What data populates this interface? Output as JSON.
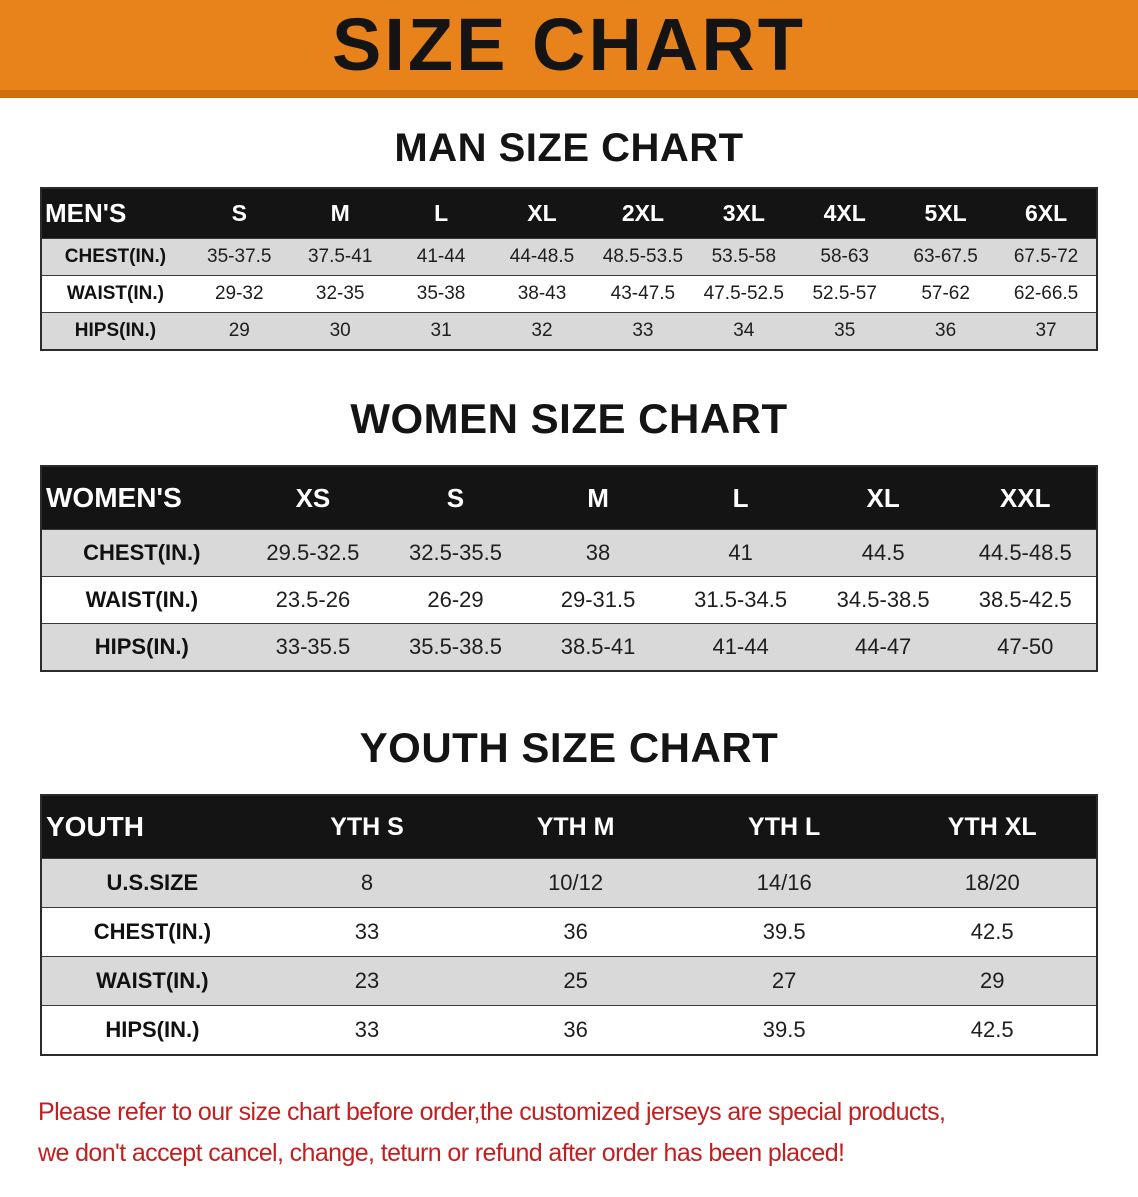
{
  "banner": {
    "title": "SIZE CHART"
  },
  "colors": {
    "banner_bg": "#e8821b",
    "banner_accent": "#d06e10",
    "table_header_bg": "#141414",
    "row_stripe": "#d9d9d9",
    "disclaimer_text": "#c22020"
  },
  "sections": [
    {
      "id": "men",
      "heading": "MAN SIZE CHART",
      "table": {
        "header": [
          "MEN'S",
          "S",
          "M",
          "L",
          "XL",
          "2XL",
          "3XL",
          "4XL",
          "5XL",
          "6XL"
        ],
        "rows": [
          [
            "CHEST(IN.)",
            "35-37.5",
            "37.5-41",
            "41-44",
            "44-48.5",
            "48.5-53.5",
            "53.5-58",
            "58-63",
            "63-67.5",
            "67.5-72"
          ],
          [
            "WAIST(IN.)",
            "29-32",
            "32-35",
            "35-38",
            "38-43",
            "43-47.5",
            "47.5-52.5",
            "52.5-57",
            "57-62",
            "62-66.5"
          ],
          [
            "HIPS(IN.)",
            "29",
            "30",
            "31",
            "32",
            "33",
            "34",
            "35",
            "36",
            "37"
          ]
        ]
      }
    },
    {
      "id": "women",
      "heading": "WOMEN SIZE CHART",
      "table": {
        "header": [
          "WOMEN'S",
          "XS",
          "S",
          "M",
          "L",
          "XL",
          "XXL"
        ],
        "rows": [
          [
            "CHEST(IN.)",
            "29.5-32.5",
            "32.5-35.5",
            "38",
            "41",
            "44.5",
            "44.5-48.5"
          ],
          [
            "WAIST(IN.)",
            "23.5-26",
            "26-29",
            "29-31.5",
            "31.5-34.5",
            "34.5-38.5",
            "38.5-42.5"
          ],
          [
            "HIPS(IN.)",
            "33-35.5",
            "35.5-38.5",
            "38.5-41",
            "41-44",
            "44-47",
            "47-50"
          ]
        ]
      }
    },
    {
      "id": "youth",
      "heading": "YOUTH SIZE CHART",
      "table": {
        "header": [
          "YOUTH",
          "YTH S",
          "YTH M",
          "YTH L",
          "YTH XL"
        ],
        "rows": [
          [
            "U.S.SIZE",
            "8",
            "10/12",
            "14/16",
            "18/20"
          ],
          [
            "CHEST(IN.)",
            "33",
            "36",
            "39.5",
            "42.5"
          ],
          [
            "WAIST(IN.)",
            "23",
            "25",
            "27",
            "29"
          ],
          [
            "HIPS(IN.)",
            "33",
            "36",
            "39.5",
            "42.5"
          ]
        ]
      }
    }
  ],
  "disclaimer": {
    "line1": "Please refer to our size chart before order,the customized jerseys are special products,",
    "line2": "we don't accept cancel, change, teturn or refund after order has been placed!"
  }
}
